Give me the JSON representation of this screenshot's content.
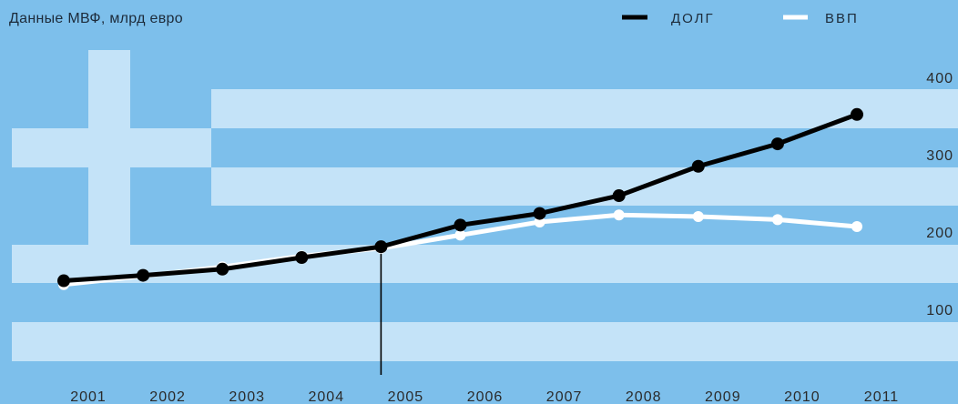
{
  "colors": {
    "background": "#7dbfeb",
    "stripe": "#c4e3f8",
    "marker_line": "#000000"
  },
  "chart_data": {
    "type": "line",
    "subtitle": "Данные МВФ, млрд евро",
    "x": [
      2001,
      2002,
      2003,
      2004,
      2005,
      2006,
      2007,
      2008,
      2009,
      2010,
      2011
    ],
    "series": [
      {
        "name": "ВВП",
        "color": "#ffffff",
        "values": [
          132,
          143,
          155,
          169,
          179,
          196,
          213,
          222,
          220,
          216,
          207
        ]
      },
      {
        "name": "ДОЛГ",
        "color": "#000000",
        "values": [
          137,
          144,
          152,
          167,
          181,
          209,
          224,
          247,
          285,
          314,
          352
        ]
      }
    ],
    "yticks": [
      100,
      200,
      300,
      400
    ],
    "ylim": [
      0,
      420
    ],
    "marker_year": 2005,
    "legend": "top-right",
    "grid": false
  }
}
